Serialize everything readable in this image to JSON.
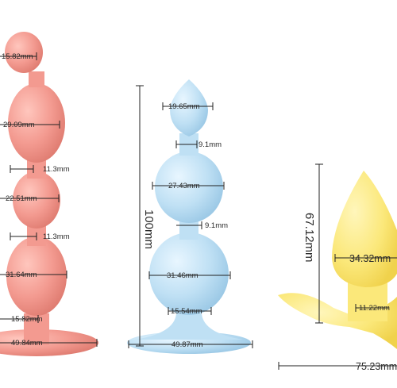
{
  "colors": {
    "pink": "#f39a90",
    "pink_shadow": "#e07d72",
    "blue": "#bfe0f4",
    "blue_shadow": "#9cc9e6",
    "yellow": "#fbe87a",
    "yellow_shadow": "#f0d24c"
  },
  "products": [
    {
      "name": "pink-beads-toy",
      "labels": [
        "15.82mm",
        "29.09mm",
        "11.3mm",
        "22.51mm",
        "11.3mm",
        "31.64mm",
        "15.82mm",
        "49.84mm"
      ]
    },
    {
      "name": "blue-beads-toy",
      "height_label": "100mm",
      "labels": [
        "19.65mm",
        "9.1mm",
        "27.43mm",
        "9.1mm",
        "31.46mm",
        "15.54mm",
        "49.87mm"
      ]
    },
    {
      "name": "yellow-plug-toy",
      "height_label": "67.12mm",
      "labels": [
        "34.32mm",
        "11.22mm",
        "75.23mm"
      ]
    }
  ]
}
